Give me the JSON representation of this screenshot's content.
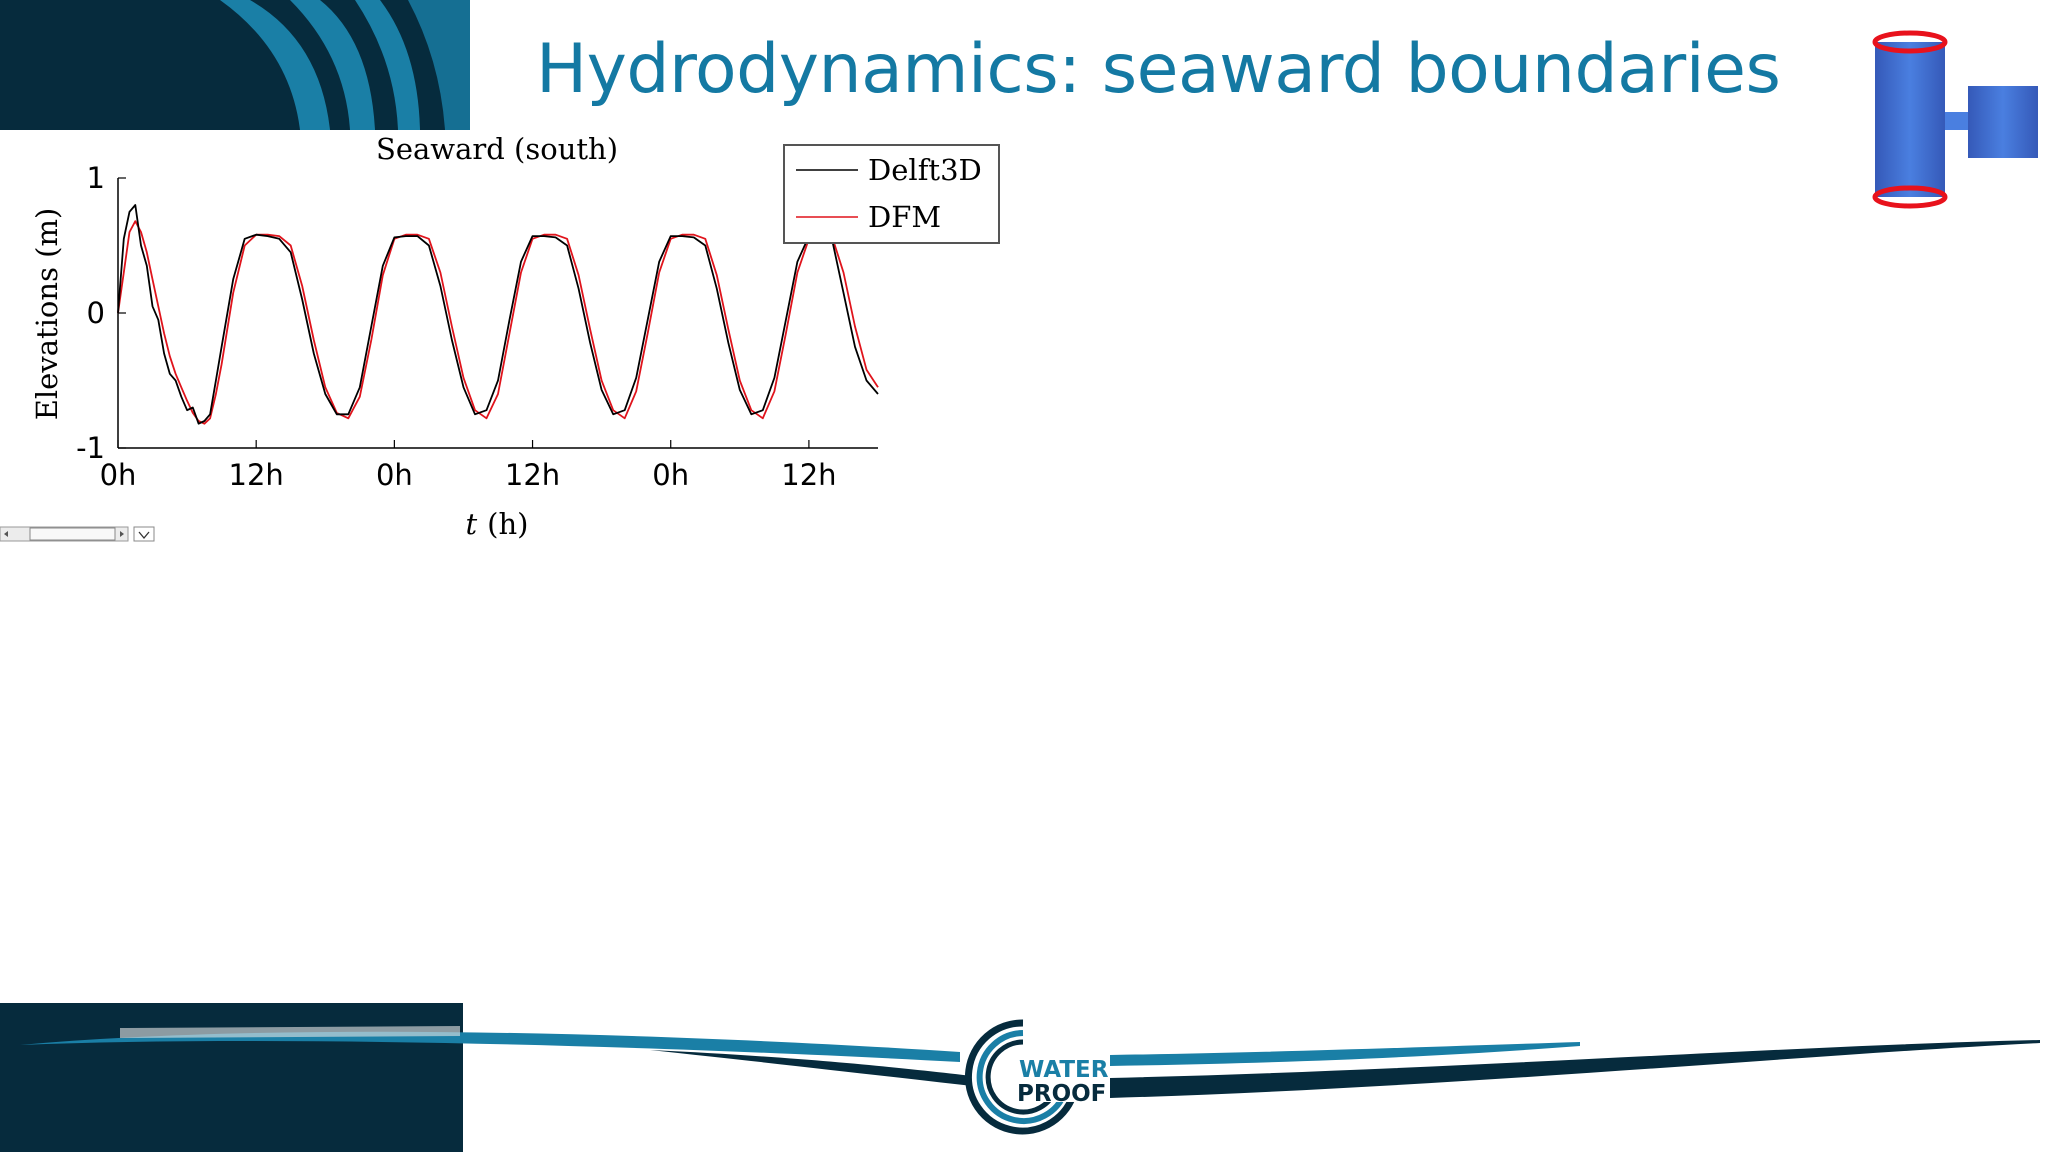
{
  "slide": {
    "title": "Hydrodynamics: seaward boundaries"
  },
  "logo": {
    "line1": "WATER",
    "line2": "PROOF"
  },
  "colors": {
    "title": "#1479a3",
    "navy": "#062b3d",
    "teal": "#1a7fa6",
    "delft3d": "#000000",
    "dfm": "#e0141c",
    "schematic_blue": "#3f6fd0",
    "schematic_ring": "#e8121c"
  },
  "chart_data": {
    "type": "line",
    "title": "Seaward (south)",
    "xlabel_var": "t",
    "xlabel_unit": "(h)",
    "ylabel": "Elevations (m)",
    "x_ticks": [
      "0h",
      "12h",
      "0h",
      "12h",
      "0h",
      "12h"
    ],
    "y_ticks": [
      "1",
      "0",
      "-1"
    ],
    "xlim": [
      0,
      66
    ],
    "ylim": [
      -1,
      1
    ],
    "legend_position": "top-right",
    "tidal_period_h": 24.0,
    "series": [
      {
        "name": "Delft3D",
        "color": "#000000",
        "x": [
          0,
          0.5,
          1,
          1.5,
          2,
          2.5,
          3,
          3.5,
          4,
          4.5,
          5,
          5.5,
          6,
          6.5,
          7,
          7.5,
          8,
          8.5,
          9,
          10,
          11,
          12,
          13,
          14,
          15,
          16,
          17,
          18,
          19,
          20,
          21,
          22,
          23,
          24,
          25,
          26,
          27,
          28,
          29,
          30,
          31,
          32,
          33,
          34,
          35,
          36,
          37,
          38,
          39,
          40,
          41,
          42,
          43,
          44,
          45,
          46,
          47,
          48,
          49,
          50,
          51,
          52,
          53,
          54,
          55,
          56,
          57,
          58,
          59,
          60,
          61,
          62,
          63,
          64,
          65,
          66
        ],
        "y": [
          0.0,
          0.55,
          0.75,
          0.8,
          0.5,
          0.35,
          0.05,
          -0.05,
          -0.3,
          -0.45,
          -0.5,
          -0.62,
          -0.72,
          -0.7,
          -0.82,
          -0.8,
          -0.75,
          -0.5,
          -0.25,
          0.25,
          0.55,
          0.58,
          0.57,
          0.55,
          0.45,
          0.1,
          -0.3,
          -0.6,
          -0.75,
          -0.75,
          -0.55,
          -0.1,
          0.35,
          0.56,
          0.57,
          0.57,
          0.5,
          0.2,
          -0.2,
          -0.55,
          -0.75,
          -0.72,
          -0.5,
          -0.05,
          0.38,
          0.57,
          0.57,
          0.56,
          0.5,
          0.18,
          -0.22,
          -0.57,
          -0.75,
          -0.72,
          -0.48,
          -0.05,
          0.38,
          0.57,
          0.57,
          0.56,
          0.5,
          0.18,
          -0.22,
          -0.57,
          -0.75,
          -0.72,
          -0.48,
          -0.05,
          0.38,
          0.57,
          0.56,
          0.55,
          0.15,
          -0.25,
          -0.5,
          -0.6
        ]
      },
      {
        "name": "DFM",
        "color": "#e0141c",
        "x": [
          0,
          0.5,
          1,
          1.5,
          2,
          2.5,
          3,
          3.5,
          4,
          4.5,
          5,
          5.5,
          6,
          6.5,
          7,
          7.5,
          8,
          8.5,
          9,
          10,
          11,
          12,
          13,
          14,
          15,
          16,
          17,
          18,
          19,
          20,
          21,
          22,
          23,
          24,
          25,
          26,
          27,
          28,
          29,
          30,
          31,
          32,
          33,
          34,
          35,
          36,
          37,
          38,
          39,
          40,
          41,
          42,
          43,
          44,
          45,
          46,
          47,
          48,
          49,
          50,
          51,
          52,
          53,
          54,
          55,
          56,
          57,
          58,
          59,
          60,
          61,
          62,
          63,
          64,
          65,
          66
        ],
        "y": [
          0.0,
          0.3,
          0.6,
          0.68,
          0.6,
          0.45,
          0.25,
          0.05,
          -0.15,
          -0.32,
          -0.45,
          -0.55,
          -0.65,
          -0.74,
          -0.8,
          -0.82,
          -0.78,
          -0.6,
          -0.38,
          0.15,
          0.5,
          0.58,
          0.58,
          0.57,
          0.5,
          0.2,
          -0.2,
          -0.55,
          -0.74,
          -0.78,
          -0.62,
          -0.2,
          0.28,
          0.55,
          0.58,
          0.58,
          0.55,
          0.3,
          -0.1,
          -0.48,
          -0.72,
          -0.78,
          -0.6,
          -0.15,
          0.3,
          0.55,
          0.58,
          0.58,
          0.55,
          0.28,
          -0.12,
          -0.5,
          -0.72,
          -0.78,
          -0.58,
          -0.15,
          0.3,
          0.55,
          0.58,
          0.58,
          0.55,
          0.28,
          -0.12,
          -0.5,
          -0.72,
          -0.78,
          -0.58,
          -0.15,
          0.3,
          0.55,
          0.58,
          0.57,
          0.3,
          -0.1,
          -0.42,
          -0.55
        ]
      }
    ]
  }
}
